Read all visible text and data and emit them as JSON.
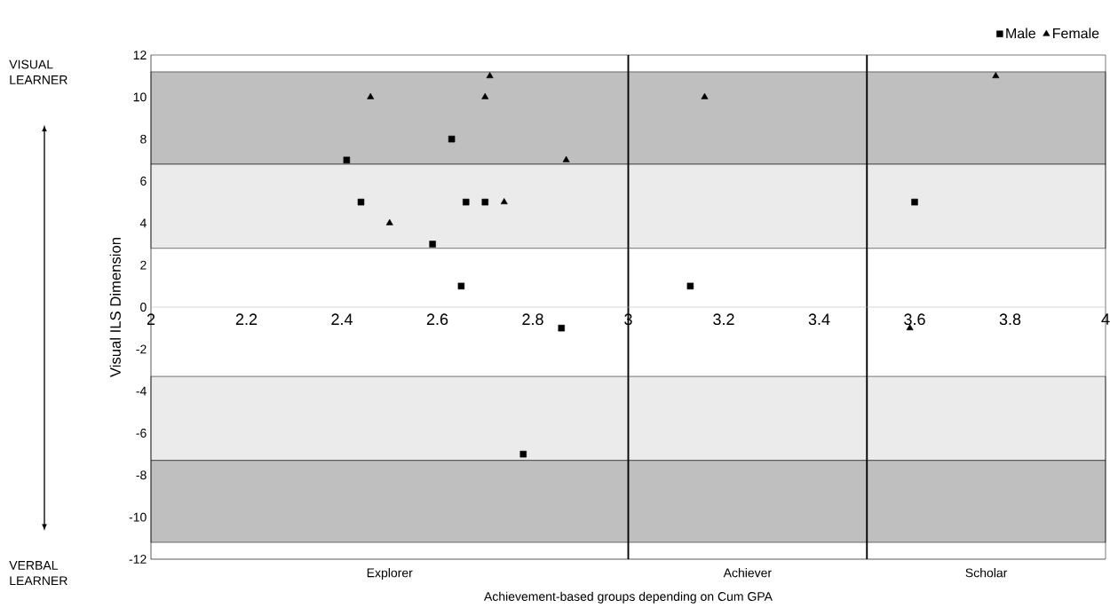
{
  "chart_data": {
    "type": "scatter",
    "xlabel": "Achievement-based groups depending on Cum GPA",
    "ylabel": "Visual ILS Dimension",
    "xlim": [
      2,
      4
    ],
    "ylim": [
      -12,
      12
    ],
    "xticks": [
      2,
      2.2,
      2.4,
      2.6,
      2.8,
      3,
      3.2,
      3.4,
      3.6,
      3.8,
      4
    ],
    "yticks": [
      -12,
      -10,
      -8,
      -6,
      -4,
      -2,
      0,
      2,
      4,
      6,
      8,
      10,
      12
    ],
    "series": [
      {
        "name": "Male",
        "color": "#000000",
        "marker": "square",
        "x": [
          2.41,
          2.44,
          2.63,
          2.59,
          2.65,
          2.66,
          2.7,
          2.86,
          2.78,
          3.13,
          3.6
        ],
        "values": [
          7,
          5,
          8,
          3,
          1,
          5,
          5,
          -1,
          -7,
          1,
          5
        ]
      },
      {
        "name": "Female",
        "color": "#000000",
        "marker": "triangle",
        "x": [
          2.46,
          2.5,
          2.7,
          2.71,
          2.74,
          2.87,
          3.16,
          3.77,
          3.59
        ],
        "values": [
          10,
          4,
          10,
          11,
          5,
          7,
          10,
          11,
          -1
        ]
      }
    ],
    "bands": [
      {
        "axis": "y",
        "from": 6.8,
        "to": 11.2,
        "color": "#bfbfbf"
      },
      {
        "axis": "y",
        "from": 2.8,
        "to": 6.8,
        "color": "#ebebeb"
      },
      {
        "axis": "y",
        "from": -7.3,
        "to": -3.3,
        "color": "#ebebeb"
      },
      {
        "axis": "y",
        "from": -11.2,
        "to": -7.3,
        "color": "#bfbfbf"
      }
    ],
    "ref_lines": [
      {
        "axis": "x",
        "value": 3
      },
      {
        "axis": "x",
        "value": 3.5
      }
    ],
    "annotations": [
      "VISUAL LEARNER",
      "VERBAL LEARNER",
      "Explorer",
      "Achiever",
      "Scholar"
    ],
    "legend": "top right"
  }
}
